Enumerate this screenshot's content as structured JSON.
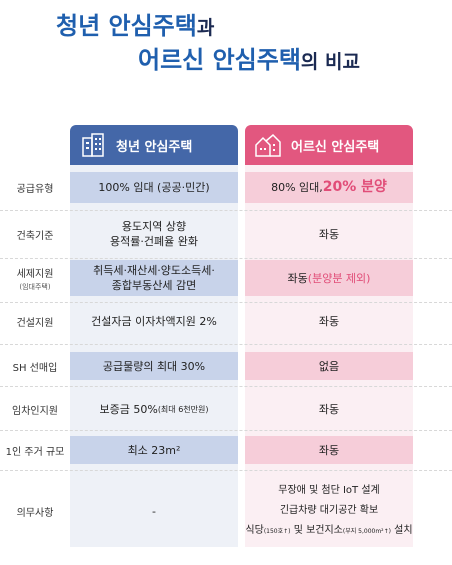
{
  "title": {
    "line1_main": "청년 안심주택",
    "line1_suffix": "과",
    "line2_main": "어르신 안심주택",
    "line2_suffix": "의 비교"
  },
  "columns": {
    "youth": "청년 안심주택",
    "senior": "어르신 안심주택"
  },
  "rows": [
    {
      "label": "공급유형",
      "youth": "100% 임대 (공공·민간)",
      "senior_a": "80% 임대, ",
      "senior_b": "20% 분양"
    },
    {
      "label": "건축기준",
      "youth_l1": "용도지역 상향",
      "youth_l2": "용적률·건폐율 완화",
      "senior": "좌동"
    },
    {
      "label": "세제지원",
      "label_sub": "(임대주택)",
      "youth_l1": "취득세·재산세·양도소득세·",
      "youth_l2": "종합부동산세 감면",
      "senior_a": "좌동 ",
      "senior_b": "(분양분 제외)"
    },
    {
      "label": "건설지원",
      "youth": "건설자금 이자차액지원 2%",
      "senior": "좌동"
    },
    {
      "label": "SH 선매입",
      "youth": "공급물량의 최대 30%",
      "senior": "없음"
    },
    {
      "label": "임차인지원",
      "youth_a": "보증금 50%",
      "youth_b": "(최대 6천만원)",
      "senior": "좌동"
    },
    {
      "label": "1인 주거 규모",
      "youth": "최소 23m²",
      "senior": "좌동"
    },
    {
      "label": "의무사항",
      "youth": "-",
      "senior_l1": "무장애 및 첨단 IoT 설계",
      "senior_l2": "긴급차량 대기공간 확보",
      "senior_l3a": "식당",
      "senior_l3b": "(150호↑)",
      "senior_l3c": " 및 보건지소",
      "senior_l3d": "(부지 5,000m²↑)",
      "senior_l3e": " 설치"
    }
  ],
  "colors": {
    "youth_header": "#4467a8",
    "senior_header": "#e2577f",
    "title_blue": "#1f5fae"
  }
}
